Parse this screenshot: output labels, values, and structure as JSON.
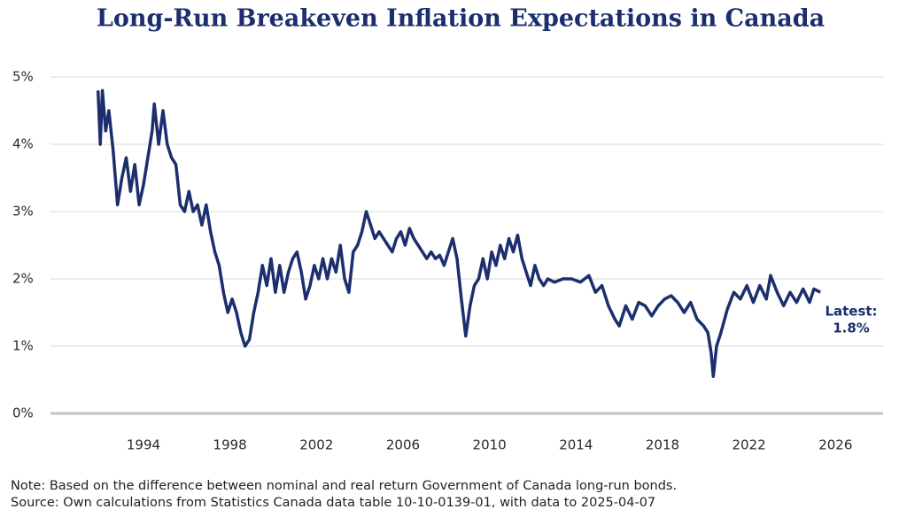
{
  "chart_data": {
    "type": "line",
    "title": "Long-Run Breakeven Inflation Expectations in Canada",
    "notes": [
      "Note: Based on the difference between nominal and real return Government of Canada long-run bonds.",
      "Source: Own calculations from Statistics Canada data table 10-10-0139-01, with data to 2025-04-07"
    ],
    "annotation": [
      "Latest:",
      "1.8%"
    ],
    "xlim": [
      1989.7,
      2028.2
    ],
    "xticks": [
      1994,
      1998,
      2002,
      2006,
      2010,
      2014,
      2018,
      2022,
      2026
    ],
    "ylim": [
      0,
      5
    ],
    "yticks": [
      {
        "value": 0,
        "label": "0%"
      },
      {
        "value": 1,
        "label": "1%"
      },
      {
        "value": 2,
        "label": "2%"
      },
      {
        "value": 3,
        "label": "3%"
      },
      {
        "value": 4,
        "label": "4%"
      },
      {
        "value": 5,
        "label": "5%"
      }
    ],
    "grid": true,
    "x": [
      1991.9,
      1992.0,
      1992.1,
      1992.25,
      1992.4,
      1992.6,
      1992.8,
      1993.0,
      1993.2,
      1993.4,
      1993.6,
      1993.8,
      1994.0,
      1994.2,
      1994.4,
      1994.5,
      1994.7,
      1994.9,
      1995.1,
      1995.3,
      1995.5,
      1995.7,
      1995.9,
      1996.1,
      1996.3,
      1996.5,
      1996.7,
      1996.9,
      1997.1,
      1997.3,
      1997.5,
      1997.7,
      1997.9,
      1998.1,
      1998.3,
      1998.5,
      1998.7,
      1998.9,
      1999.1,
      1999.3,
      1999.5,
      1999.7,
      1999.9,
      2000.1,
      2000.3,
      2000.5,
      2000.7,
      2000.9,
      2001.1,
      2001.3,
      2001.5,
      2001.7,
      2001.9,
      2002.1,
      2002.3,
      2002.5,
      2002.7,
      2002.9,
      2003.1,
      2003.3,
      2003.5,
      2003.7,
      2003.9,
      2004.1,
      2004.3,
      2004.5,
      2004.7,
      2004.9,
      2005.1,
      2005.3,
      2005.5,
      2005.7,
      2005.9,
      2006.1,
      2006.3,
      2006.5,
      2006.7,
      2006.9,
      2007.1,
      2007.3,
      2007.5,
      2007.7,
      2007.9,
      2008.1,
      2008.3,
      2008.5,
      2008.7,
      2008.9,
      2009.1,
      2009.3,
      2009.5,
      2009.7,
      2009.9,
      2010.1,
      2010.3,
      2010.5,
      2010.7,
      2010.9,
      2011.1,
      2011.3,
      2011.5,
      2011.7,
      2011.9,
      2012.1,
      2012.3,
      2012.5,
      2012.7,
      2013.0,
      2013.4,
      2013.8,
      2014.2,
      2014.6,
      2014.9,
      2015.2,
      2015.5,
      2015.8,
      2016.0,
      2016.3,
      2016.6,
      2016.9,
      2017.2,
      2017.5,
      2017.8,
      2018.1,
      2018.4,
      2018.7,
      2019.0,
      2019.3,
      2019.6,
      2019.9,
      2020.1,
      2020.25,
      2020.35,
      2020.5,
      2020.7,
      2021.0,
      2021.3,
      2021.6,
      2021.9,
      2022.2,
      2022.5,
      2022.8,
      2023.0,
      2023.3,
      2023.6,
      2023.9,
      2024.2,
      2024.5,
      2024.8,
      2025.0,
      2025.3
    ],
    "series": [
      {
        "name": "Breakeven inflation",
        "color": "#1c2e6e",
        "values": [
          4.8,
          4.0,
          4.8,
          4.2,
          4.5,
          3.9,
          3.1,
          3.5,
          3.8,
          3.3,
          3.7,
          3.1,
          3.4,
          3.8,
          4.2,
          4.6,
          4.0,
          4.5,
          4.0,
          3.8,
          3.7,
          3.1,
          3.0,
          3.3,
          3.0,
          3.1,
          2.8,
          3.1,
          2.7,
          2.4,
          2.2,
          1.8,
          1.5,
          1.7,
          1.5,
          1.2,
          1.0,
          1.1,
          1.5,
          1.8,
          2.2,
          1.9,
          2.3,
          1.8,
          2.2,
          1.8,
          2.1,
          2.3,
          2.4,
          2.1,
          1.7,
          1.9,
          2.2,
          2.0,
          2.3,
          2.0,
          2.3,
          2.1,
          2.5,
          2.0,
          1.8,
          2.4,
          2.5,
          2.7,
          3.0,
          2.8,
          2.6,
          2.7,
          2.6,
          2.5,
          2.4,
          2.6,
          2.7,
          2.5,
          2.75,
          2.6,
          2.5,
          2.4,
          2.3,
          2.4,
          2.3,
          2.35,
          2.2,
          2.4,
          2.6,
          2.3,
          1.7,
          1.15,
          1.6,
          1.9,
          2.0,
          2.3,
          2.0,
          2.4,
          2.2,
          2.5,
          2.3,
          2.6,
          2.4,
          2.65,
          2.3,
          2.1,
          1.9,
          2.2,
          2.0,
          1.9,
          2.0,
          1.95,
          2.0,
          2.0,
          1.95,
          2.05,
          1.8,
          1.9,
          1.6,
          1.4,
          1.3,
          1.6,
          1.4,
          1.65,
          1.6,
          1.45,
          1.6,
          1.7,
          1.75,
          1.65,
          1.5,
          1.65,
          1.4,
          1.3,
          1.2,
          0.9,
          0.55,
          1.0,
          1.2,
          1.55,
          1.8,
          1.7,
          1.9,
          1.65,
          1.9,
          1.7,
          2.05,
          1.8,
          1.6,
          1.8,
          1.65,
          1.85,
          1.65,
          1.85,
          1.8
        ]
      }
    ]
  }
}
